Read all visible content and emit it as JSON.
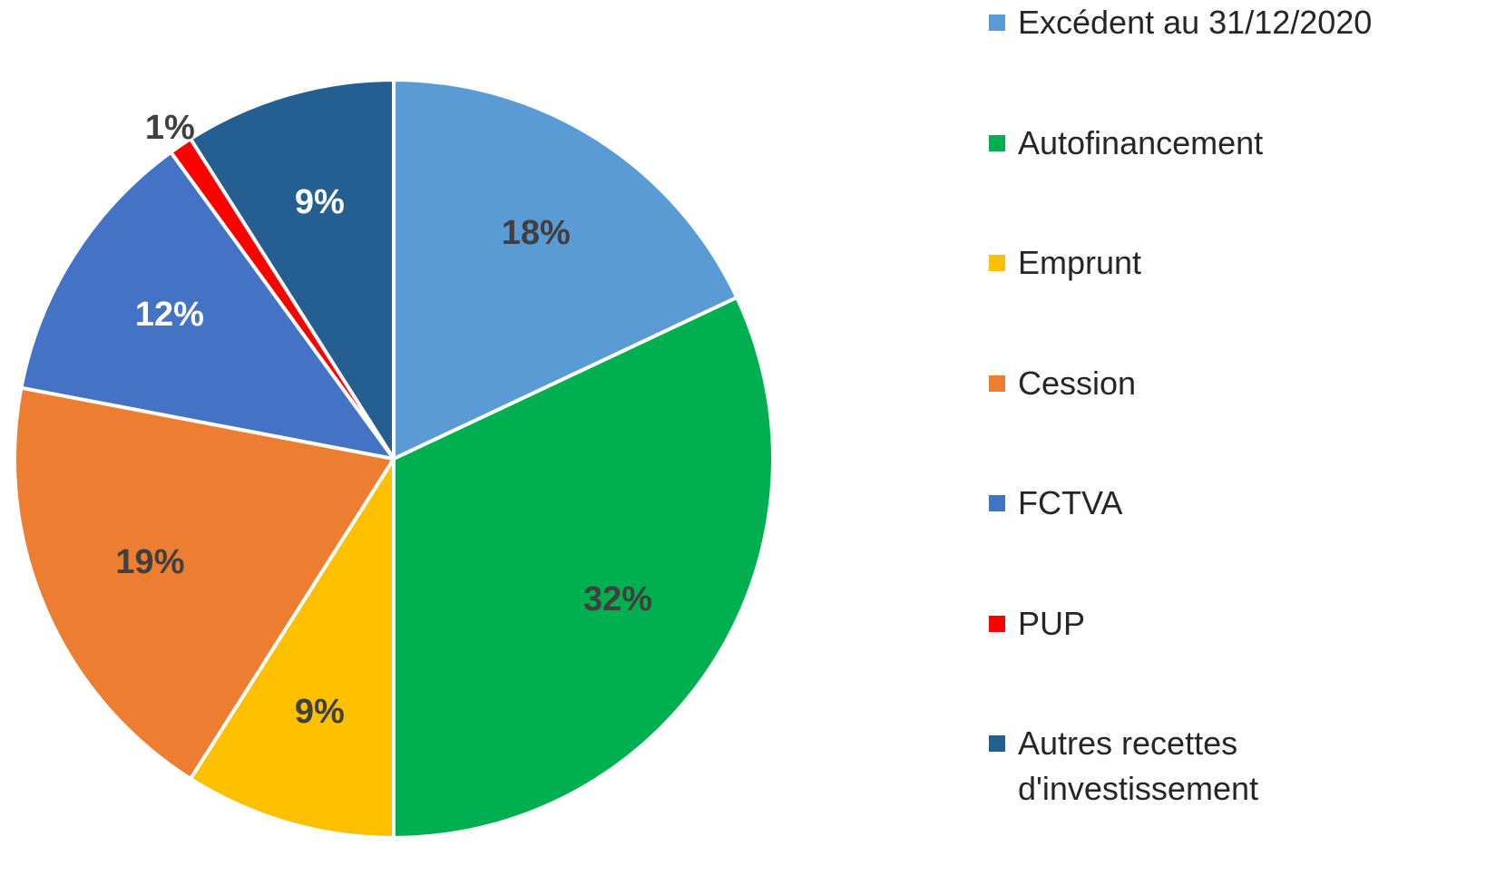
{
  "chart_data": {
    "type": "pie",
    "categories": [
      "Excédent au 31/12/2020",
      "Autofinancement",
      "Emprunt",
      "Cession",
      "FCTVA",
      "PUP",
      "Autres recettes d'investissement"
    ],
    "values": [
      18,
      32,
      9,
      19,
      12,
      1,
      9
    ],
    "value_labels": [
      "18%",
      "32%",
      "9%",
      "19%",
      "12%",
      "1%",
      "9%"
    ],
    "colors": [
      "#5b9bd5",
      "#00b050",
      "#ffc000",
      "#ed7d31",
      "#4472c4",
      "#ff0000",
      "#255e91"
    ],
    "label_colors": [
      "#404040",
      "#404040",
      "#404040",
      "#404040",
      "#ffffff",
      "#404040",
      "#ffffff"
    ],
    "legend": "right"
  }
}
